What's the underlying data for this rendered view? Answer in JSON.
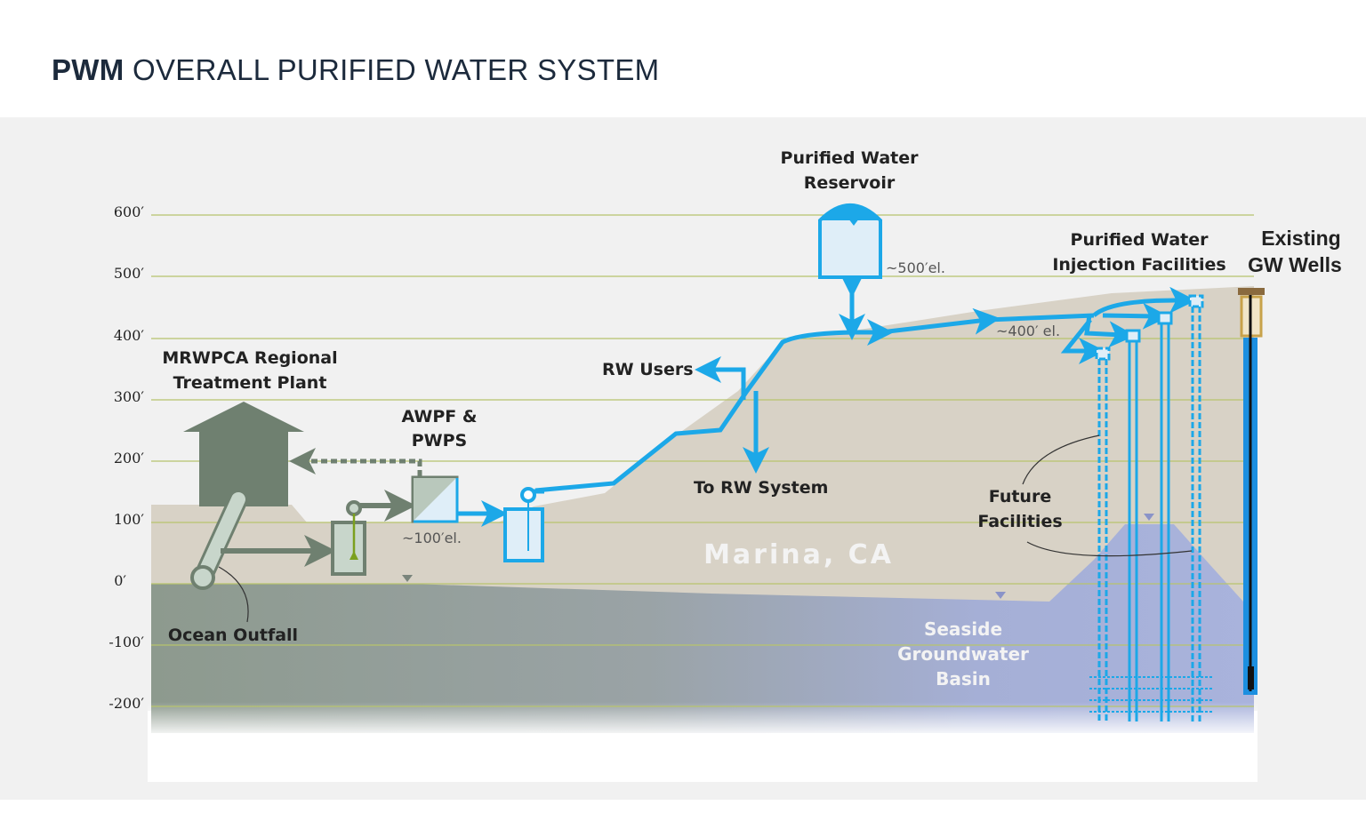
{
  "title": {
    "bold": "PWM",
    "rest": "OVERALL PURIFIED WATER SYSTEM"
  },
  "elevation_ticks": [
    "600′",
    "500′",
    "400′",
    "300′",
    "200′",
    "100′",
    "0′",
    "-100′",
    "-200′"
  ],
  "labels": {
    "treatment_plant": [
      "MRWPCA Regional",
      "Treatment Plant"
    ],
    "awpf": [
      "AWPF &",
      "PWPS"
    ],
    "awpf_elevation": "~100′el.",
    "rw_users": "RW Users",
    "to_rw_system": "To RW System",
    "reservoir": [
      "Purified Water",
      "Reservoir"
    ],
    "reservoir_elevation": "~500′el.",
    "injection": [
      "Purified Water",
      "Injection Facilities"
    ],
    "injection_elevation": "~400′ el.",
    "existing_wells": [
      "Existing",
      "GW Wells"
    ],
    "future": [
      "Future",
      "Facilities"
    ],
    "ocean_outfall": "Ocean Outfall",
    "location": "Marina, CA",
    "basin": [
      "Seaside",
      "Groundwater",
      "Basin"
    ]
  },
  "colors": {
    "purified_water": "#1ca8e8",
    "treatment": "#6f8070",
    "terrain": "#d8d2c6",
    "gridline": "#b7c46c",
    "basin": "#a7b1d9"
  }
}
